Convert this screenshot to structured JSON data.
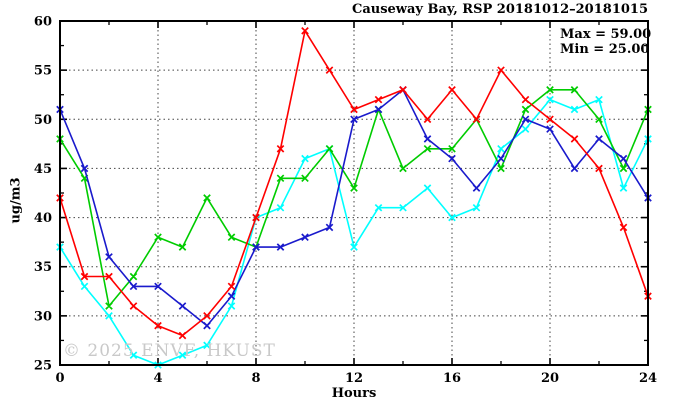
{
  "title": "Causeway Bay, RSP 20181012–20181015",
  "annotation": {
    "max_label": "Max = 59.00",
    "min_label": "Min = 25.00"
  },
  "watermark": "© 2025 ENVF, HKUST",
  "chart_data": {
    "type": "line",
    "title": "Causeway Bay, RSP 20181012–20181015",
    "xlabel": "Hours",
    "ylabel": "ug/m3",
    "xlim": [
      0,
      24
    ],
    "ylim": [
      25,
      60
    ],
    "x": [
      0,
      1,
      2,
      3,
      4,
      5,
      6,
      7,
      8,
      9,
      10,
      11,
      12,
      13,
      14,
      15,
      16,
      17,
      18,
      19,
      20,
      21,
      22,
      23,
      24
    ],
    "x_major_ticks": [
      0,
      4,
      8,
      12,
      16,
      20,
      24
    ],
    "x_minor_ticks": [
      2,
      6,
      10,
      14,
      18,
      22
    ],
    "y_major_ticks": [
      25,
      30,
      35,
      40,
      45,
      50,
      55,
      60
    ],
    "y_minor_ticks": [
      27.5,
      32.5,
      37.5,
      42.5,
      47.5,
      52.5,
      57.5
    ],
    "grid_x": [
      4,
      8,
      12,
      16,
      20
    ],
    "grid_y": [
      30,
      35,
      40,
      45,
      50,
      55
    ],
    "grid_on": true,
    "legend": "none",
    "max": 59.0,
    "min": 25.0,
    "series": [
      {
        "name": "cyan-series",
        "color": "#00ffff",
        "marker": "x",
        "values": [
          37,
          33,
          30,
          26,
          25,
          26,
          27,
          31,
          40,
          41,
          46,
          47,
          37,
          41,
          41,
          43,
          40,
          41,
          47,
          49,
          52,
          51,
          52,
          43,
          48
        ]
      },
      {
        "name": "green-series",
        "color": "#00cc00",
        "marker": "x",
        "values": [
          48,
          44,
          31,
          34,
          38,
          37,
          42,
          38,
          37,
          44,
          44,
          47,
          43,
          51,
          45,
          47,
          47,
          50,
          45,
          51,
          53,
          53,
          50,
          45,
          51
        ]
      },
      {
        "name": "blue-series",
        "color": "#1a1acc",
        "marker": "x",
        "values": [
          51,
          45,
          36,
          33,
          33,
          31,
          29,
          32,
          37,
          37,
          38,
          39,
          50,
          51,
          53,
          48,
          46,
          43,
          46,
          50,
          49,
          45,
          48,
          46,
          42
        ]
      },
      {
        "name": "red-series",
        "color": "#ff0000",
        "marker": "x",
        "values": [
          42,
          34,
          34,
          31,
          29,
          28,
          30,
          33,
          40,
          47,
          59,
          55,
          51,
          52,
          53,
          50,
          53,
          50,
          55,
          52,
          50,
          48,
          45,
          39,
          32
        ]
      }
    ]
  }
}
